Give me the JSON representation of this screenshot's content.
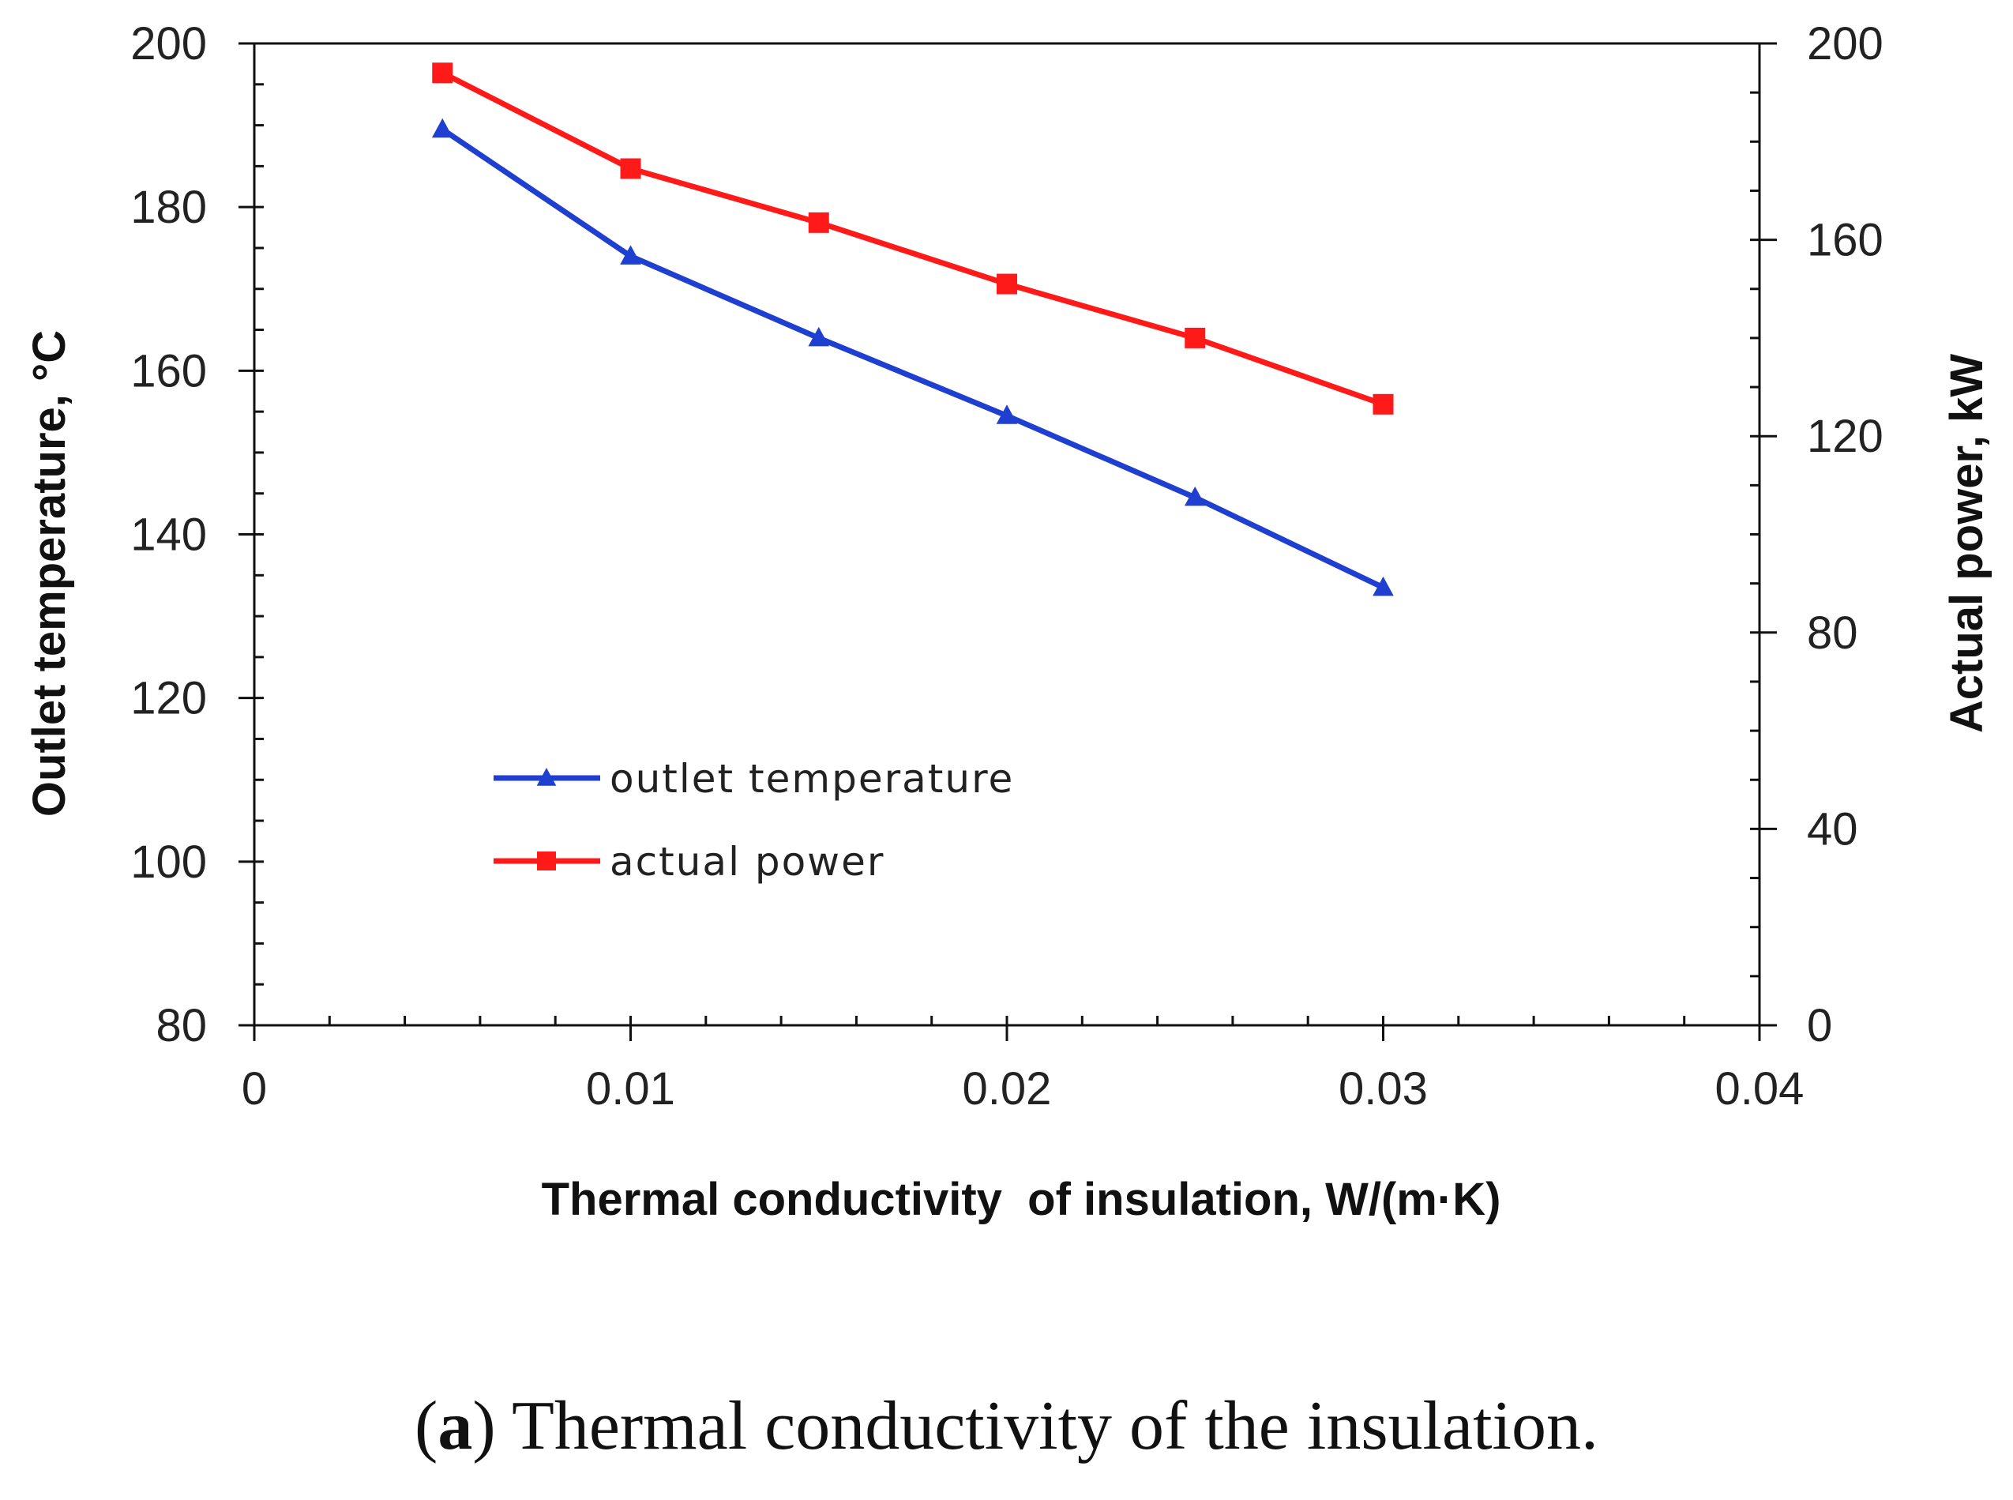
{
  "chart_data": {
    "type": "line",
    "x": [
      0.005,
      0.01,
      0.015,
      0.02,
      0.025,
      0.03
    ],
    "xlim": [
      0,
      0.04
    ],
    "xticks": [
      "0",
      "0.01",
      "0.02",
      "0.03",
      "0.04"
    ],
    "xlabel": "Thermal conductivity  of insulation, W/(m·K)",
    "ylabel": "Outlet temperature, °C",
    "ylim": [
      80,
      200
    ],
    "yticks": [
      "80",
      "100",
      "120",
      "140",
      "160",
      "180",
      "200"
    ],
    "y2label": "Actual power, kW",
    "y2lim": [
      0,
      200
    ],
    "y2ticks": [
      "0",
      "40",
      "80",
      "120",
      "160",
      "200"
    ],
    "series": [
      {
        "name": "outlet temperature",
        "axis": "left",
        "marker": "triangle",
        "color": "#1f3fd0",
        "values": [
          189.5,
          174,
          164,
          154.5,
          144.5,
          133.5
        ]
      },
      {
        "name": "actual power",
        "axis": "right",
        "marker": "square",
        "color": "#ff1a1a",
        "values": [
          194,
          174.5,
          163.5,
          151,
          140,
          126.5
        ]
      }
    ],
    "legend": "center-left"
  },
  "caption": {
    "label": "a",
    "text": "Thermal conductivity of the insulation."
  }
}
